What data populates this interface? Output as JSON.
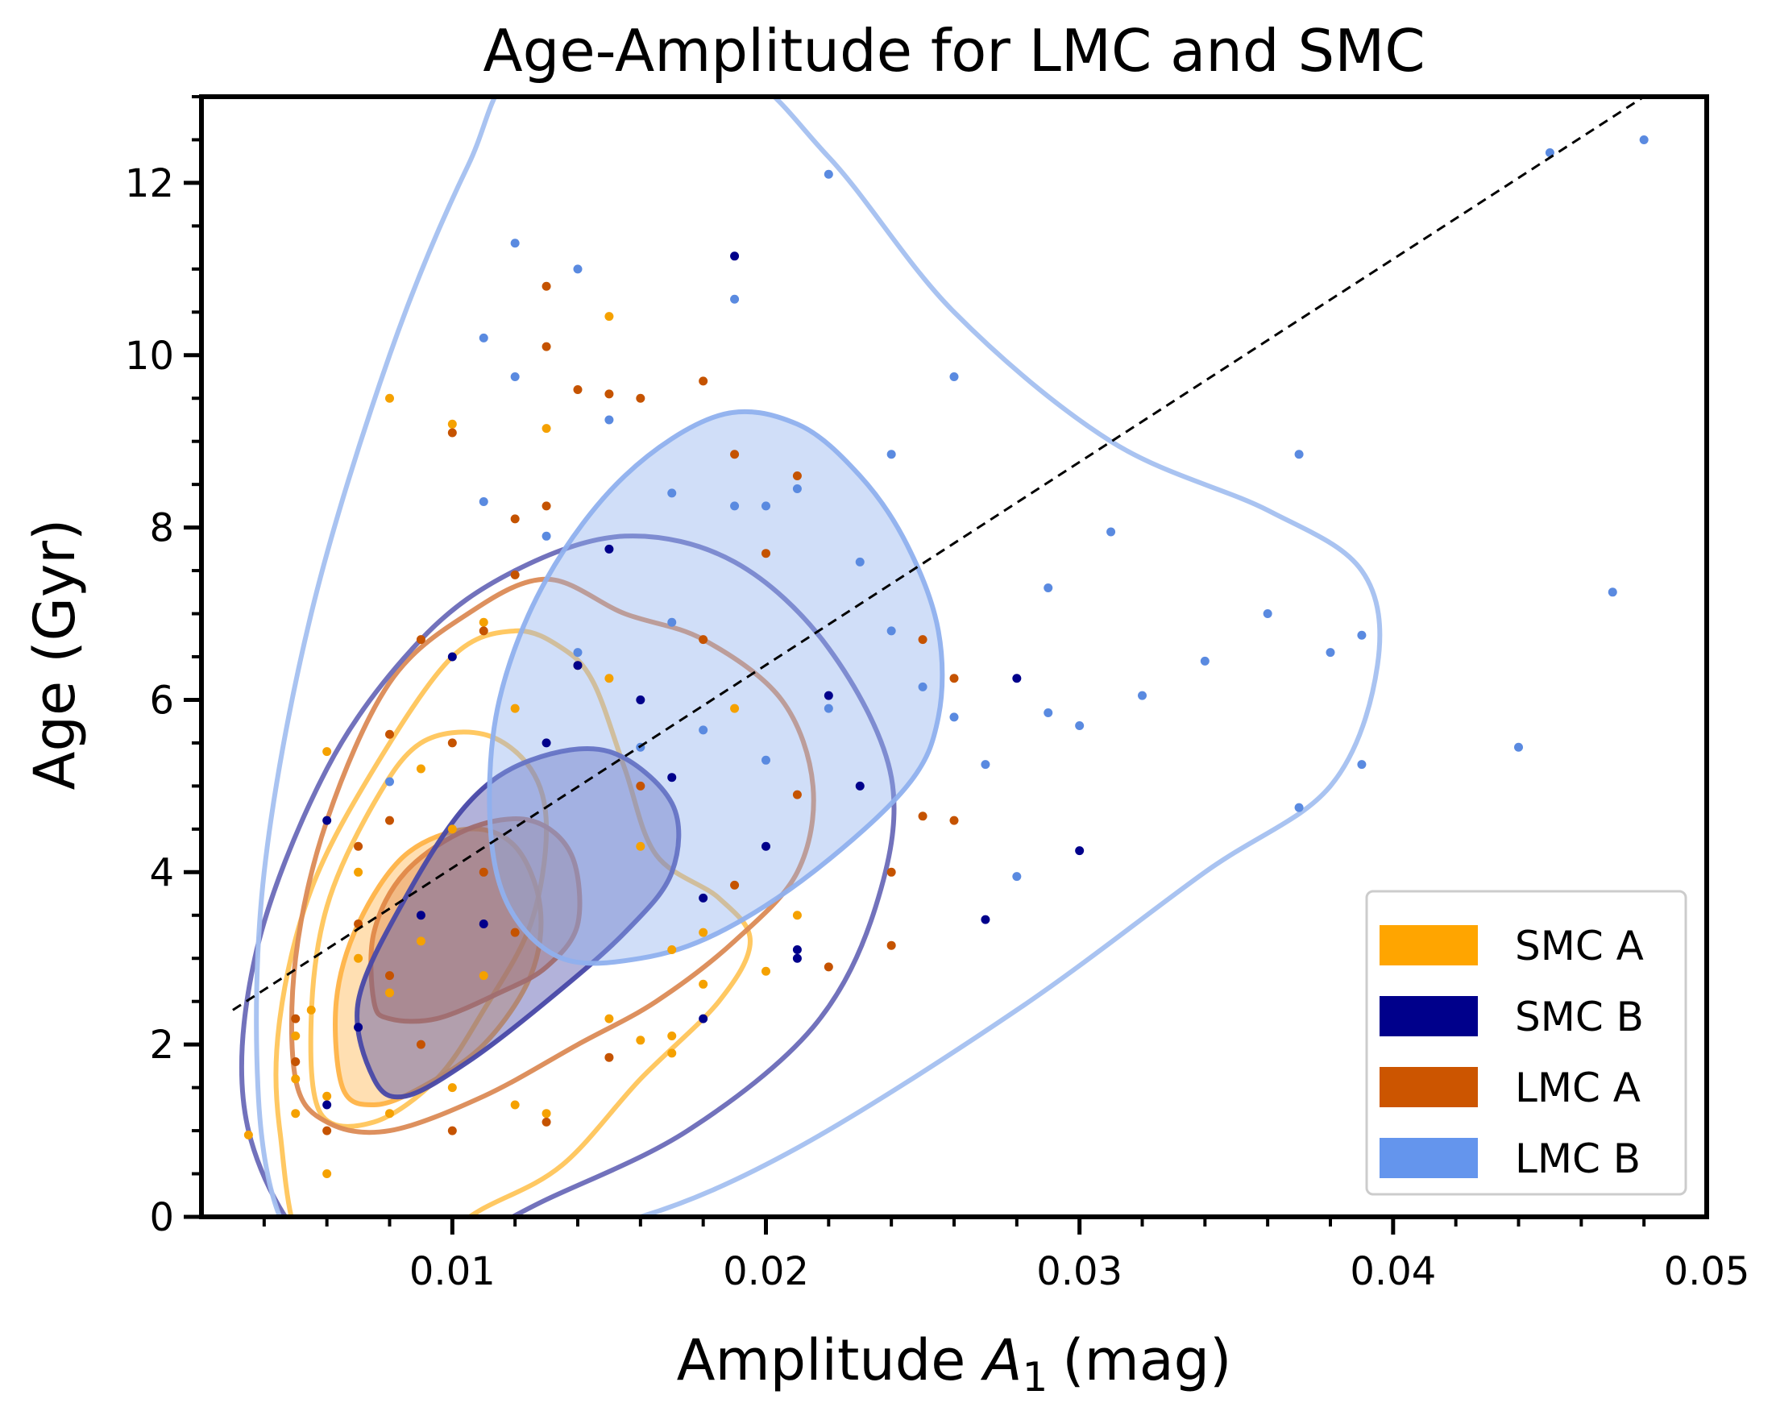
{
  "chart_data": {
    "type": "scatter",
    "title": "Age-Amplitude for LMC and SMC",
    "xlabel_main": "Amplitude",
    "xlabel_var": "A",
    "xlabel_sub": "1",
    "xlabel_unit": "(mag)",
    "ylabel": "Age (Gyr)",
    "xlim": [
      0.002,
      0.05
    ],
    "ylim": [
      0,
      13
    ],
    "xticks": [
      0.01,
      0.02,
      0.03,
      0.04,
      0.05
    ],
    "xtick_labels": [
      "0.01",
      "0.02",
      "0.03",
      "0.04",
      "0.05"
    ],
    "yticks": [
      0,
      2,
      4,
      6,
      8,
      10,
      12
    ],
    "ytick_labels": [
      "0",
      "2",
      "4",
      "6",
      "8",
      "10",
      "12"
    ],
    "fit_line": {
      "x": [
        0.003,
        0.048
      ],
      "y": [
        2.4,
        13.0
      ],
      "style": "dashed",
      "color": "#000000"
    },
    "legend": {
      "placement": "lower-right",
      "entries": [
        {
          "label": "SMC A",
          "color": "#ffa500"
        },
        {
          "label": "SMC B",
          "color": "#00008b"
        },
        {
          "label": "LMC A",
          "color": "#cc5500"
        },
        {
          "label": "LMC B",
          "color": "#6495ed"
        }
      ]
    },
    "contours": [
      {
        "series": "SMC A",
        "level": "outer",
        "color": "#ffc55a",
        "fill": false,
        "points": [
          [
            0.0055,
            -0.5
          ],
          [
            0.0045,
            1
          ],
          [
            0.0045,
            2.3
          ],
          [
            0.0055,
            3.8
          ],
          [
            0.0075,
            5.2
          ],
          [
            0.01,
            6.5
          ],
          [
            0.012,
            6.8
          ],
          [
            0.0135,
            6.6
          ],
          [
            0.0145,
            6.2
          ],
          [
            0.0155,
            5.2
          ],
          [
            0.0165,
            4.2
          ],
          [
            0.0185,
            3.7
          ],
          [
            0.0195,
            3.2
          ],
          [
            0.0185,
            2.5
          ],
          [
            0.016,
            1.6
          ],
          [
            0.0135,
            0.6
          ],
          [
            0.011,
            0.1
          ],
          [
            0.009,
            -0.3
          ]
        ]
      },
      {
        "series": "SMC A",
        "level": "mid",
        "color": "#ffc55a",
        "fill": false,
        "points": [
          [
            0.0058,
            1.2
          ],
          [
            0.0055,
            2.3
          ],
          [
            0.006,
            3.6
          ],
          [
            0.0075,
            4.8
          ],
          [
            0.009,
            5.5
          ],
          [
            0.011,
            5.6
          ],
          [
            0.0125,
            5.2
          ],
          [
            0.013,
            4.5
          ],
          [
            0.0125,
            3.4
          ],
          [
            0.011,
            2.4
          ],
          [
            0.0095,
            1.6
          ],
          [
            0.0075,
            1.1
          ]
        ]
      },
      {
        "series": "SMC A",
        "level": "inner",
        "color": "#ffb347",
        "fill": true,
        "points": [
          [
            0.0065,
            1.5
          ],
          [
            0.0063,
            2.5
          ],
          [
            0.007,
            3.4
          ],
          [
            0.0085,
            4.2
          ],
          [
            0.0105,
            4.5
          ],
          [
            0.012,
            4.3
          ],
          [
            0.0128,
            3.6
          ],
          [
            0.0125,
            2.8
          ],
          [
            0.011,
            2.0
          ],
          [
            0.009,
            1.5
          ],
          [
            0.0075,
            1.3
          ]
        ]
      },
      {
        "series": "LMC A",
        "level": "outer",
        "color": "#db8a55",
        "fill": false,
        "points": [
          [
            0.005,
            1.6
          ],
          [
            0.005,
            3.0
          ],
          [
            0.006,
            4.6
          ],
          [
            0.008,
            6.2
          ],
          [
            0.0105,
            7.0
          ],
          [
            0.013,
            7.4
          ],
          [
            0.0155,
            7.0
          ],
          [
            0.018,
            6.7
          ],
          [
            0.0205,
            6.0
          ],
          [
            0.0215,
            5.0
          ],
          [
            0.021,
            4.0
          ],
          [
            0.019,
            3.2
          ],
          [
            0.0165,
            2.5
          ],
          [
            0.014,
            2.0
          ],
          [
            0.011,
            1.4
          ],
          [
            0.008,
            1.0
          ],
          [
            0.006,
            1.1
          ]
        ]
      },
      {
        "series": "LMC A",
        "level": "inner",
        "color": "#e08848",
        "fill": true,
        "points": [
          [
            0.0075,
            2.5
          ],
          [
            0.0075,
            3.3
          ],
          [
            0.0085,
            4.0
          ],
          [
            0.0105,
            4.5
          ],
          [
            0.0125,
            4.6
          ],
          [
            0.0138,
            4.2
          ],
          [
            0.014,
            3.4
          ],
          [
            0.013,
            2.9
          ],
          [
            0.0115,
            2.6
          ],
          [
            0.0095,
            2.3
          ],
          [
            0.008,
            2.3
          ]
        ]
      },
      {
        "series": "SMC B",
        "level": "outer",
        "color": "#6a6ab8",
        "fill": false,
        "points": [
          [
            0.006,
            -0.5
          ],
          [
            0.0035,
            1.0
          ],
          [
            0.0037,
            3.0
          ],
          [
            0.006,
            5.2
          ],
          [
            0.009,
            6.7
          ],
          [
            0.012,
            7.5
          ],
          [
            0.0155,
            7.9
          ],
          [
            0.019,
            7.6
          ],
          [
            0.022,
            6.6
          ],
          [
            0.024,
            5.1
          ],
          [
            0.0235,
            3.6
          ],
          [
            0.0215,
            2.2
          ],
          [
            0.0175,
            1.0
          ],
          [
            0.013,
            0.2
          ],
          [
            0.01,
            -0.3
          ]
        ]
      },
      {
        "series": "SMC B",
        "level": "inner",
        "color": "#4848a8",
        "fill": true,
        "points": [
          [
            0.0075,
            1.6
          ],
          [
            0.007,
            2.5
          ],
          [
            0.0085,
            3.7
          ],
          [
            0.0105,
            4.8
          ],
          [
            0.0125,
            5.3
          ],
          [
            0.015,
            5.4
          ],
          [
            0.017,
            4.8
          ],
          [
            0.017,
            4.0
          ],
          [
            0.0155,
            3.3
          ],
          [
            0.013,
            2.5
          ],
          [
            0.0105,
            1.8
          ],
          [
            0.0085,
            1.4
          ]
        ]
      },
      {
        "series": "LMC B",
        "level": "outer",
        "color": "#a4c0f0",
        "fill": false,
        "points": [
          [
            0.0045,
            0
          ],
          [
            0.0038,
            1.5
          ],
          [
            0.004,
            4
          ],
          [
            0.0055,
            7
          ],
          [
            0.008,
            10
          ],
          [
            0.0105,
            12.2
          ],
          [
            0.0125,
            13.4
          ],
          [
            0.0185,
            13.4
          ],
          [
            0.022,
            12.3
          ],
          [
            0.026,
            10.5
          ],
          [
            0.031,
            9.0
          ],
          [
            0.036,
            8.2
          ],
          [
            0.039,
            7.5
          ],
          [
            0.0395,
            6.4
          ],
          [
            0.038,
            5.0
          ],
          [
            0.034,
            4.0
          ],
          [
            0.028,
            2.4
          ],
          [
            0.021,
            0.8
          ],
          [
            0.016,
            0
          ],
          [
            0.012,
            -0.2
          ],
          [
            0.006,
            -0.5
          ]
        ]
      },
      {
        "series": "LMC B",
        "level": "inner",
        "color": "#8fb0ee",
        "fill": true,
        "points": [
          [
            0.0135,
            3.0
          ],
          [
            0.0118,
            3.6
          ],
          [
            0.0112,
            4.6
          ],
          [
            0.0115,
            6.0
          ],
          [
            0.013,
            7.4
          ],
          [
            0.0155,
            8.6
          ],
          [
            0.0185,
            9.3
          ],
          [
            0.021,
            9.2
          ],
          [
            0.023,
            8.6
          ],
          [
            0.0245,
            7.8
          ],
          [
            0.0255,
            6.8
          ],
          [
            0.0255,
            5.8
          ],
          [
            0.0245,
            5.0
          ],
          [
            0.0215,
            4.0
          ],
          [
            0.0185,
            3.3
          ],
          [
            0.016,
            3.0
          ]
        ]
      }
    ],
    "series": [
      {
        "name": "SMC A",
        "color": "#f5a100",
        "points": [
          [
            0.0035,
            0.95
          ],
          [
            0.005,
            1.2
          ],
          [
            0.005,
            1.6
          ],
          [
            0.005,
            2.1
          ],
          [
            0.0055,
            2.4
          ],
          [
            0.006,
            0.5
          ],
          [
            0.006,
            1.4
          ],
          [
            0.006,
            5.4
          ],
          [
            0.007,
            3.0
          ],
          [
            0.007,
            4.0
          ],
          [
            0.008,
            1.2
          ],
          [
            0.008,
            2.6
          ],
          [
            0.008,
            9.5
          ],
          [
            0.009,
            3.2
          ],
          [
            0.009,
            5.2
          ],
          [
            0.01,
            9.2
          ],
          [
            0.01,
            4.5
          ],
          [
            0.01,
            1.5
          ],
          [
            0.011,
            6.9
          ],
          [
            0.011,
            2.8
          ],
          [
            0.012,
            1.3
          ],
          [
            0.012,
            5.9
          ],
          [
            0.013,
            9.15
          ],
          [
            0.013,
            1.2
          ],
          [
            0.014,
            6.4
          ],
          [
            0.015,
            10.45
          ],
          [
            0.015,
            6.25
          ],
          [
            0.015,
            2.3
          ],
          [
            0.016,
            4.3
          ],
          [
            0.016,
            2.05
          ],
          [
            0.017,
            2.1
          ],
          [
            0.017,
            1.9
          ],
          [
            0.017,
            3.1
          ],
          [
            0.018,
            2.7
          ],
          [
            0.018,
            3.3
          ],
          [
            0.019,
            5.9
          ],
          [
            0.02,
            2.85
          ],
          [
            0.021,
            3.5
          ]
        ]
      },
      {
        "name": "SMC B",
        "color": "#00008b",
        "points": [
          [
            0.006,
            1.3
          ],
          [
            0.006,
            4.6
          ],
          [
            0.007,
            2.2
          ],
          [
            0.009,
            3.5
          ],
          [
            0.01,
            6.5
          ],
          [
            0.011,
            3.4
          ],
          [
            0.013,
            5.5
          ],
          [
            0.014,
            6.4
          ],
          [
            0.015,
            7.75
          ],
          [
            0.016,
            6.0
          ],
          [
            0.017,
            5.1
          ],
          [
            0.018,
            3.7
          ],
          [
            0.018,
            2.3
          ],
          [
            0.019,
            11.15
          ],
          [
            0.02,
            4.3
          ],
          [
            0.021,
            3.1
          ],
          [
            0.021,
            3.0
          ],
          [
            0.022,
            6.05
          ],
          [
            0.023,
            5.0
          ],
          [
            0.027,
            3.45
          ],
          [
            0.028,
            6.25
          ],
          [
            0.03,
            4.25
          ]
        ]
      },
      {
        "name": "LMC A",
        "color": "#c55300",
        "points": [
          [
            0.005,
            2.3
          ],
          [
            0.005,
            1.8
          ],
          [
            0.006,
            1.0
          ],
          [
            0.007,
            4.3
          ],
          [
            0.007,
            3.4
          ],
          [
            0.008,
            5.6
          ],
          [
            0.008,
            2.8
          ],
          [
            0.008,
            4.6
          ],
          [
            0.009,
            6.7
          ],
          [
            0.009,
            2.0
          ],
          [
            0.01,
            1.0
          ],
          [
            0.01,
            9.1
          ],
          [
            0.01,
            5.5
          ],
          [
            0.011,
            6.8
          ],
          [
            0.011,
            4.0
          ],
          [
            0.012,
            8.1
          ],
          [
            0.012,
            7.45
          ],
          [
            0.012,
            3.3
          ],
          [
            0.013,
            10.8
          ],
          [
            0.013,
            10.1
          ],
          [
            0.013,
            8.25
          ],
          [
            0.013,
            1.1
          ],
          [
            0.014,
            9.6
          ],
          [
            0.015,
            9.55
          ],
          [
            0.015,
            1.85
          ],
          [
            0.016,
            9.5
          ],
          [
            0.016,
            5.0
          ],
          [
            0.018,
            9.7
          ],
          [
            0.018,
            6.7
          ],
          [
            0.019,
            8.85
          ],
          [
            0.019,
            3.85
          ],
          [
            0.02,
            7.7
          ],
          [
            0.021,
            8.6
          ],
          [
            0.021,
            4.9
          ],
          [
            0.022,
            2.9
          ],
          [
            0.024,
            3.15
          ],
          [
            0.024,
            4.0
          ],
          [
            0.025,
            4.65
          ],
          [
            0.025,
            6.7
          ],
          [
            0.026,
            4.6
          ],
          [
            0.026,
            6.25
          ]
        ]
      },
      {
        "name": "LMC B",
        "color": "#5a8ae0",
        "points": [
          [
            0.008,
            5.05
          ],
          [
            0.011,
            10.2
          ],
          [
            0.011,
            8.3
          ],
          [
            0.012,
            11.3
          ],
          [
            0.012,
            9.75
          ],
          [
            0.013,
            7.9
          ],
          [
            0.014,
            11.0
          ],
          [
            0.014,
            6.55
          ],
          [
            0.015,
            9.25
          ],
          [
            0.016,
            5.45
          ],
          [
            0.017,
            8.4
          ],
          [
            0.017,
            6.9
          ],
          [
            0.018,
            5.65
          ],
          [
            0.019,
            10.65
          ],
          [
            0.019,
            8.25
          ],
          [
            0.02,
            8.25
          ],
          [
            0.02,
            5.3
          ],
          [
            0.021,
            8.45
          ],
          [
            0.022,
            12.1
          ],
          [
            0.022,
            5.9
          ],
          [
            0.023,
            7.6
          ],
          [
            0.024,
            8.85
          ],
          [
            0.024,
            6.8
          ],
          [
            0.025,
            6.15
          ],
          [
            0.026,
            9.75
          ],
          [
            0.026,
            5.8
          ],
          [
            0.027,
            5.25
          ],
          [
            0.028,
            3.95
          ],
          [
            0.029,
            7.3
          ],
          [
            0.029,
            5.85
          ],
          [
            0.03,
            5.7
          ],
          [
            0.031,
            7.95
          ],
          [
            0.032,
            6.05
          ],
          [
            0.034,
            6.45
          ],
          [
            0.036,
            7.0
          ],
          [
            0.037,
            4.75
          ],
          [
            0.037,
            8.85
          ],
          [
            0.038,
            6.55
          ],
          [
            0.039,
            6.75
          ],
          [
            0.039,
            5.25
          ],
          [
            0.044,
            5.45
          ],
          [
            0.045,
            12.35
          ],
          [
            0.047,
            7.25
          ],
          [
            0.048,
            12.5
          ]
        ]
      }
    ]
  }
}
